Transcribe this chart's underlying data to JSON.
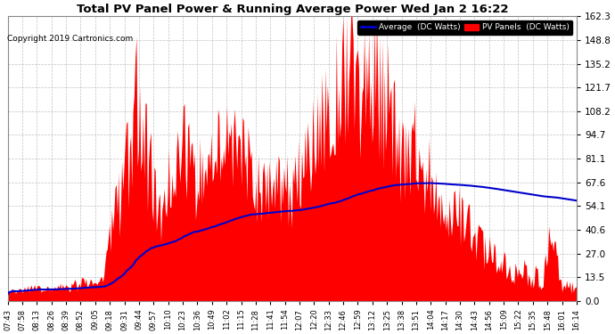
{
  "title": "Total PV Panel Power & Running Average Power Wed Jan 2 16:22",
  "copyright": "Copyright 2019 Cartronics.com",
  "yticks": [
    0.0,
    13.5,
    27.0,
    40.6,
    54.1,
    67.6,
    81.1,
    94.7,
    108.2,
    121.7,
    135.2,
    148.8,
    162.3
  ],
  "ymax": 162.3,
  "ymin": 0.0,
  "background_color": "#ffffff",
  "grid_color": "#bbbbbb",
  "bar_color": "#ff0000",
  "avg_color": "#0000cc",
  "xtick_labels": [
    "07:43",
    "07:58",
    "08:13",
    "08:26",
    "08:39",
    "08:52",
    "09:05",
    "09:18",
    "09:31",
    "09:44",
    "09:57",
    "10:10",
    "10:23",
    "10:36",
    "10:49",
    "11:02",
    "11:15",
    "11:28",
    "11:41",
    "11:54",
    "12:07",
    "12:20",
    "12:33",
    "12:46",
    "12:59",
    "13:12",
    "13:25",
    "13:38",
    "13:51",
    "14:04",
    "14:17",
    "14:30",
    "14:43",
    "14:56",
    "15:09",
    "15:22",
    "15:35",
    "15:48",
    "16:01",
    "16:14"
  ]
}
